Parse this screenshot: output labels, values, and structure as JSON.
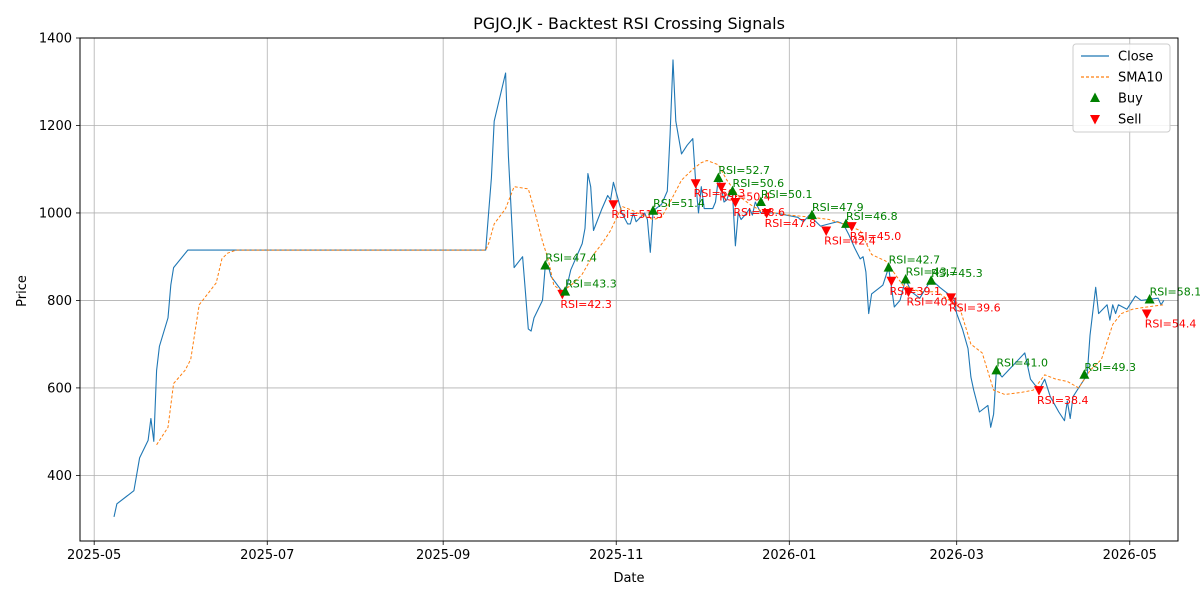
{
  "chart_data": {
    "type": "line",
    "title": "PGJO.JK - Backtest RSI Crossing Signals",
    "xlabel": "Date",
    "ylabel": "Price",
    "xlim": [
      "2025-04-26",
      "2026-05-18"
    ],
    "ylim": [
      250,
      1400
    ],
    "x_ticks": [
      "2025-05",
      "2025-07",
      "2025-09",
      "2025-11",
      "2026-01",
      "2026-03",
      "2026-05"
    ],
    "y_ticks": [
      400,
      600,
      800,
      1000,
      1200,
      1400
    ],
    "grid": true,
    "legend_position": "top-right",
    "colors": {
      "close": "#1f77b4",
      "sma": "#ff7f0e",
      "buy": "#008000",
      "sell": "#ff0000"
    },
    "series": [
      {
        "name": "Close",
        "style": "solid",
        "points": [
          [
            "2025-05-08",
            305
          ],
          [
            "2025-05-09",
            335
          ],
          [
            "2025-05-15",
            365
          ],
          [
            "2025-05-17",
            440
          ],
          [
            "2025-05-20",
            480
          ],
          [
            "2025-05-21",
            530
          ],
          [
            "2025-05-22",
            478
          ],
          [
            "2025-05-23",
            640
          ],
          [
            "2025-05-24",
            695
          ],
          [
            "2025-05-27",
            760
          ],
          [
            "2025-05-28",
            835
          ],
          [
            "2025-05-29",
            875
          ],
          [
            "2025-06-03",
            915
          ],
          [
            "2025-06-16",
            915
          ],
          [
            "2025-08-01",
            915
          ],
          [
            "2025-09-16",
            915
          ],
          [
            "2025-09-17",
            1000
          ],
          [
            "2025-09-18",
            1080
          ],
          [
            "2025-09-19",
            1210
          ],
          [
            "2025-09-23",
            1320
          ],
          [
            "2025-09-24",
            1130
          ],
          [
            "2025-09-25",
            1000
          ],
          [
            "2025-09-26",
            875
          ],
          [
            "2025-09-29",
            900
          ],
          [
            "2025-09-30",
            820
          ],
          [
            "2025-10-01",
            735
          ],
          [
            "2025-10-02",
            730
          ],
          [
            "2025-10-03",
            760
          ],
          [
            "2025-10-06",
            800
          ],
          [
            "2025-10-07",
            880
          ],
          [
            "2025-10-08",
            880
          ],
          [
            "2025-10-09",
            855
          ],
          [
            "2025-10-13",
            820
          ],
          [
            "2025-10-14",
            815
          ],
          [
            "2025-10-16",
            870
          ],
          [
            "2025-10-20",
            930
          ],
          [
            "2025-10-21",
            965
          ],
          [
            "2025-10-22",
            1090
          ],
          [
            "2025-10-23",
            1060
          ],
          [
            "2025-10-24",
            960
          ],
          [
            "2025-10-27",
            1010
          ],
          [
            "2025-10-29",
            1040
          ],
          [
            "2025-10-30",
            1030
          ],
          [
            "2025-10-31",
            1070
          ],
          [
            "2025-11-03",
            1000
          ],
          [
            "2025-11-05",
            975
          ],
          [
            "2025-11-06",
            975
          ],
          [
            "2025-11-07",
            1000
          ],
          [
            "2025-11-08",
            980
          ],
          [
            "2025-11-11",
            1000
          ],
          [
            "2025-11-12",
            985
          ],
          [
            "2025-11-13",
            910
          ],
          [
            "2025-11-14",
            1005
          ],
          [
            "2025-11-17",
            1020
          ],
          [
            "2025-11-19",
            1050
          ],
          [
            "2025-11-20",
            1180
          ],
          [
            "2025-11-21",
            1350
          ],
          [
            "2025-11-22",
            1210
          ],
          [
            "2025-11-24",
            1135
          ],
          [
            "2025-11-26",
            1155
          ],
          [
            "2025-11-28",
            1170
          ],
          [
            "2025-11-29",
            1070
          ],
          [
            "2025-11-30",
            1000
          ],
          [
            "2025-12-01",
            1060
          ],
          [
            "2025-12-02",
            1010
          ],
          [
            "2025-12-05",
            1010
          ],
          [
            "2025-12-06",
            1025
          ],
          [
            "2025-12-07",
            1080
          ],
          [
            "2025-12-08",
            1060
          ],
          [
            "2025-12-09",
            1025
          ],
          [
            "2025-12-10",
            1030
          ],
          [
            "2025-12-11",
            1050
          ],
          [
            "2025-12-12",
            1040
          ],
          [
            "2025-12-13",
            925
          ],
          [
            "2025-12-14",
            1000
          ],
          [
            "2025-12-15",
            985
          ],
          [
            "2025-12-17",
            1000
          ],
          [
            "2025-12-18",
            1010
          ],
          [
            "2025-12-19",
            995
          ],
          [
            "2025-12-20",
            1025
          ],
          [
            "2025-12-22",
            1000
          ],
          [
            "2025-12-27",
            1000
          ],
          [
            "2026-01-04",
            990
          ],
          [
            "2026-01-06",
            980
          ],
          [
            "2026-01-08",
            995
          ],
          [
            "2026-01-12",
            970
          ],
          [
            "2026-01-15",
            975
          ],
          [
            "2026-01-18",
            980
          ],
          [
            "2026-01-20",
            975
          ],
          [
            "2026-01-22",
            950
          ],
          [
            "2026-01-24",
            920
          ],
          [
            "2026-01-26",
            895
          ],
          [
            "2026-01-27",
            900
          ],
          [
            "2026-01-28",
            865
          ],
          [
            "2026-01-29",
            770
          ],
          [
            "2026-01-30",
            815
          ],
          [
            "2026-02-02",
            830
          ],
          [
            "2026-02-03",
            835
          ],
          [
            "2026-02-05",
            875
          ],
          [
            "2026-02-07",
            785
          ],
          [
            "2026-02-09",
            800
          ],
          [
            "2026-02-11",
            848
          ],
          [
            "2026-02-13",
            820
          ],
          [
            "2026-02-16",
            805
          ],
          [
            "2026-02-20",
            848
          ],
          [
            "2026-02-23",
            830
          ],
          [
            "2026-02-25",
            820
          ],
          [
            "2026-02-28",
            805
          ],
          [
            "2026-03-01",
            770
          ],
          [
            "2026-03-03",
            735
          ],
          [
            "2026-03-05",
            690
          ],
          [
            "2026-03-06",
            625
          ],
          [
            "2026-03-07",
            595
          ],
          [
            "2026-03-09",
            545
          ],
          [
            "2026-03-12",
            560
          ],
          [
            "2026-03-13",
            510
          ],
          [
            "2026-03-14",
            540
          ],
          [
            "2026-03-15",
            640
          ],
          [
            "2026-03-17",
            625
          ],
          [
            "2026-03-25",
            680
          ],
          [
            "2026-03-27",
            620
          ],
          [
            "2026-03-30",
            595
          ],
          [
            "2026-04-01",
            620
          ],
          [
            "2026-04-03",
            580
          ],
          [
            "2026-04-06",
            545
          ],
          [
            "2026-04-08",
            525
          ],
          [
            "2026-04-09",
            570
          ],
          [
            "2026-04-10",
            530
          ],
          [
            "2026-04-11",
            580
          ],
          [
            "2026-04-14",
            610
          ],
          [
            "2026-04-16",
            630
          ],
          [
            "2026-04-17",
            720
          ],
          [
            "2026-04-19",
            830
          ],
          [
            "2026-04-20",
            770
          ],
          [
            "2026-04-23",
            790
          ],
          [
            "2026-04-24",
            755
          ],
          [
            "2026-04-25",
            790
          ],
          [
            "2026-04-26",
            770
          ],
          [
            "2026-04-27",
            790
          ],
          [
            "2026-04-30",
            780
          ],
          [
            "2026-05-02",
            800
          ],
          [
            "2026-05-03",
            810
          ],
          [
            "2026-05-05",
            800
          ],
          [
            "2026-05-11",
            805
          ],
          [
            "2026-05-12",
            790
          ],
          [
            "2026-05-13",
            800
          ]
        ]
      },
      {
        "name": "SMA10",
        "style": "dashed",
        "points": [
          [
            "2025-05-23",
            470
          ],
          [
            "2025-05-27",
            510
          ],
          [
            "2025-05-29",
            610
          ],
          [
            "2025-06-02",
            640
          ],
          [
            "2025-06-04",
            665
          ],
          [
            "2025-06-07",
            790
          ],
          [
            "2025-06-10",
            815
          ],
          [
            "2025-06-13",
            840
          ],
          [
            "2025-06-15",
            895
          ],
          [
            "2025-06-17",
            908
          ],
          [
            "2025-06-20",
            915
          ],
          [
            "2025-09-16",
            915
          ],
          [
            "2025-09-17",
            930
          ],
          [
            "2025-09-19",
            975
          ],
          [
            "2025-09-23",
            1010
          ],
          [
            "2025-09-26",
            1060
          ],
          [
            "2025-10-01",
            1055
          ],
          [
            "2025-10-03",
            1010
          ],
          [
            "2025-10-06",
            935
          ],
          [
            "2025-10-08",
            895
          ],
          [
            "2025-10-10",
            835
          ],
          [
            "2025-10-13",
            820
          ],
          [
            "2025-10-15",
            830
          ],
          [
            "2025-10-17",
            840
          ],
          [
            "2025-10-20",
            860
          ],
          [
            "2025-10-24",
            905
          ],
          [
            "2025-10-27",
            930
          ],
          [
            "2025-10-30",
            960
          ],
          [
            "2025-11-03",
            1015
          ],
          [
            "2025-11-07",
            1005
          ],
          [
            "2025-11-10",
            995
          ],
          [
            "2025-11-14",
            985
          ],
          [
            "2025-11-17",
            990
          ],
          [
            "2025-11-20",
            1025
          ],
          [
            "2025-11-24",
            1075
          ],
          [
            "2025-11-28",
            1100
          ],
          [
            "2025-12-01",
            1115
          ],
          [
            "2025-12-03",
            1120
          ],
          [
            "2025-12-07",
            1110
          ],
          [
            "2025-12-10",
            1075
          ],
          [
            "2025-12-14",
            1040
          ],
          [
            "2025-12-18",
            1020
          ],
          [
            "2025-12-22",
            1005
          ],
          [
            "2026-01-01",
            995
          ],
          [
            "2026-01-09",
            990
          ],
          [
            "2026-01-15",
            985
          ],
          [
            "2026-01-20",
            975
          ],
          [
            "2026-01-26",
            960
          ],
          [
            "2026-01-30",
            905
          ],
          [
            "2026-02-04",
            890
          ],
          [
            "2026-02-10",
            835
          ],
          [
            "2026-02-16",
            820
          ],
          [
            "2026-02-22",
            820
          ],
          [
            "2026-03-02",
            785
          ],
          [
            "2026-03-06",
            700
          ],
          [
            "2026-03-10",
            680
          ],
          [
            "2026-03-14",
            595
          ],
          [
            "2026-03-18",
            585
          ],
          [
            "2026-03-24",
            590
          ],
          [
            "2026-03-28",
            595
          ],
          [
            "2026-04-01",
            630
          ],
          [
            "2026-04-05",
            620
          ],
          [
            "2026-04-09",
            615
          ],
          [
            "2026-04-13",
            600
          ],
          [
            "2026-04-17",
            640
          ],
          [
            "2026-04-21",
            665
          ],
          [
            "2026-04-25",
            745
          ],
          [
            "2026-04-28",
            770
          ],
          [
            "2026-05-02",
            780
          ],
          [
            "2026-05-07",
            785
          ],
          [
            "2026-05-13",
            790
          ]
        ]
      }
    ],
    "signals": [
      {
        "type": "Buy",
        "date": "2025-10-07",
        "price": 880,
        "label": "RSI=47.4"
      },
      {
        "type": "Sell",
        "date": "2025-10-13",
        "price": 815,
        "label": "RSI=42.3"
      },
      {
        "type": "Buy",
        "date": "2025-10-14",
        "price": 820,
        "label": "RSI=43.3"
      },
      {
        "type": "Sell",
        "date": "2025-10-31",
        "price": 1020,
        "label": "RSI=51.5"
      },
      {
        "type": "Buy",
        "date": "2025-11-14",
        "price": 1005,
        "label": "RSI=51.4"
      },
      {
        "type": "Sell",
        "date": "2025-11-29",
        "price": 1068,
        "label": "RSI=50.3"
      },
      {
        "type": "Buy",
        "date": "2025-12-07",
        "price": 1080,
        "label": "RSI=52.7"
      },
      {
        "type": "Sell",
        "date": "2025-12-08",
        "price": 1060,
        "label": "RSI=50.4"
      },
      {
        "type": "Buy",
        "date": "2025-12-12",
        "price": 1050,
        "label": "RSI=50.6"
      },
      {
        "type": "Sell",
        "date": "2025-12-13",
        "price": 1025,
        "label": "RSI=48.6"
      },
      {
        "type": "Buy",
        "date": "2025-12-22",
        "price": 1025,
        "label": "RSI=50.1"
      },
      {
        "type": "Sell",
        "date": "2025-12-24",
        "price": 1000,
        "label": "RSI=47.8"
      },
      {
        "type": "Buy",
        "date": "2026-01-09",
        "price": 995,
        "label": "RSI=47.9"
      },
      {
        "type": "Sell",
        "date": "2026-01-14",
        "price": 960,
        "label": "RSI=42.4"
      },
      {
        "type": "Buy",
        "date": "2026-01-21",
        "price": 975,
        "label": "RSI=46.8"
      },
      {
        "type": "Sell",
        "date": "2026-01-23",
        "price": 970,
        "label": "RSI=45.0"
      },
      {
        "type": "Buy",
        "date": "2026-02-05",
        "price": 875,
        "label": "RSI=42.7"
      },
      {
        "type": "Sell",
        "date": "2026-02-06",
        "price": 845,
        "label": "RSI=39.1"
      },
      {
        "type": "Buy",
        "date": "2026-02-11",
        "price": 848,
        "label": "RSI=43.7"
      },
      {
        "type": "Sell",
        "date": "2026-02-12",
        "price": 820,
        "label": "RSI=40.4"
      },
      {
        "type": "Buy",
        "date": "2026-02-20",
        "price": 845,
        "label": "RSI=45.3"
      },
      {
        "type": "Sell",
        "date": "2026-02-27",
        "price": 807,
        "label": "RSI=39.6"
      },
      {
        "type": "Buy",
        "date": "2026-03-15",
        "price": 640,
        "label": "RSI=41.0"
      },
      {
        "type": "Sell",
        "date": "2026-03-30",
        "price": 595,
        "label": "RSI=38.4"
      },
      {
        "type": "Buy",
        "date": "2026-04-15",
        "price": 630,
        "label": "RSI=49.3"
      },
      {
        "type": "Buy",
        "date": "2026-05-08",
        "price": 802,
        "label": "RSI=58.1"
      },
      {
        "type": "Sell",
        "date": "2026-05-07",
        "price": 770,
        "label": "RSI=54.4"
      }
    ],
    "legend": [
      {
        "label": "Close",
        "kind": "line",
        "color": "#1f77b4",
        "dash": ""
      },
      {
        "label": "SMA10",
        "kind": "line",
        "color": "#ff7f0e",
        "dash": "3,2"
      },
      {
        "label": "Buy",
        "kind": "buy",
        "color": "#008000"
      },
      {
        "label": "Sell",
        "kind": "sell",
        "color": "#ff0000"
      }
    ]
  }
}
